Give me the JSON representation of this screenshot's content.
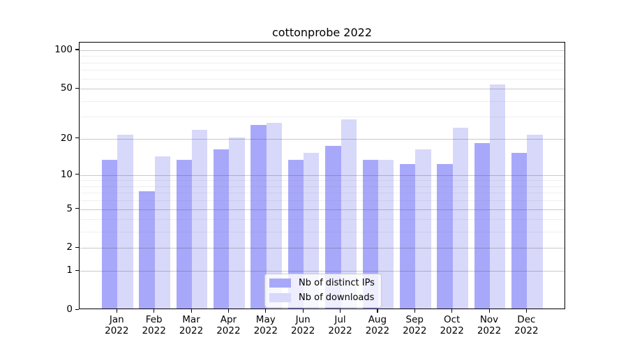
{
  "title": "cottonprobe 2022",
  "legend": {
    "items": [
      {
        "label": "Nb of distinct IPs",
        "series": 0
      },
      {
        "label": "Nb of downloads",
        "series": 1
      }
    ]
  },
  "colors": {
    "distinct_ips_bar": "#a8a8fa",
    "downloads_bar": "#d8d8fa",
    "axis": "#000000",
    "background": "#ffffff",
    "legend_border": "#cccccc"
  },
  "chart_data": {
    "type": "bar",
    "title": "cottonprobe 2022",
    "categories": [
      "Jan 2022",
      "Feb 2022",
      "Mar 2022",
      "Apr 2022",
      "May 2022",
      "Jun 2022",
      "Jul 2022",
      "Aug 2022",
      "Sep 2022",
      "Oct 2022",
      "Nov 2022",
      "Dec 2022"
    ],
    "series": [
      {
        "name": "Nb of distinct IPs",
        "color": "#a8a8fa",
        "values": [
          13,
          7,
          13,
          16,
          25,
          13,
          17,
          13,
          12,
          12,
          18,
          15
        ]
      },
      {
        "name": "Nb of downloads",
        "color": "#d8d8fa",
        "values": [
          21,
          14,
          23,
          20,
          26,
          15,
          28,
          13,
          16,
          24,
          53,
          21
        ]
      }
    ],
    "xlabel": "",
    "ylabel": "",
    "yscale": "log1p",
    "ylim": [
      0,
      115
    ],
    "yticks": [
      0,
      1,
      2,
      5,
      10,
      20,
      50,
      100
    ],
    "minor_gridlines": [
      3,
      4,
      6,
      7,
      8,
      9,
      30,
      40,
      60,
      70,
      80,
      90
    ],
    "grid": true,
    "legend_position": "lower center"
  }
}
